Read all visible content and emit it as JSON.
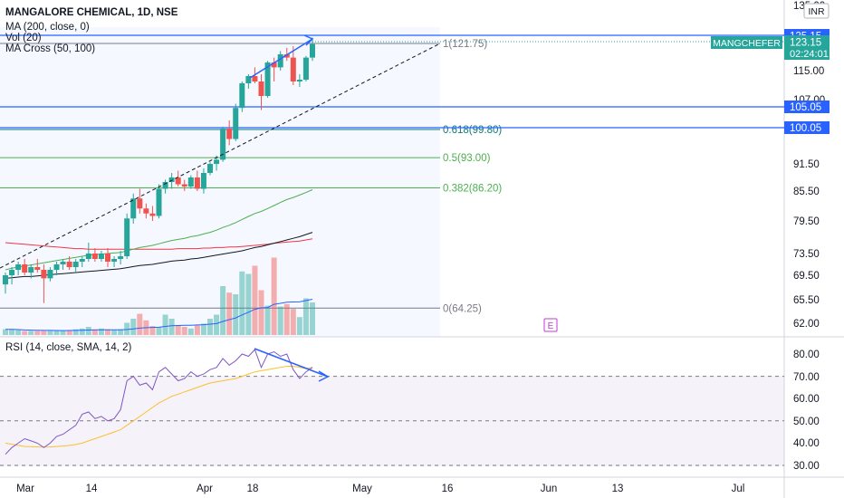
{
  "legend": {
    "symbol": "MANGALORE CHEMICAL, 1D, NSE",
    "ma": "MA (200, close, 0)",
    "vol": "Vol (20)",
    "ma_cross": "MA Cross (50, 100)",
    "rsi": "RSI (14, close, SMA, 14, 2)"
  },
  "currency": "INR",
  "price_badges": {
    "ticker": "MANGCHEFER",
    "last": "123.15",
    "countdown": "02:24:01",
    "line_high": "125.15",
    "line_mid": "105.05",
    "line_low": "100.05"
  },
  "event_marker": "E",
  "colors": {
    "up": "#26a69a",
    "down": "#ef5350",
    "trendline_blue": "#2962ff",
    "ma_green": "#4caf50",
    "ma_black": "#131722",
    "ma_red": "#f23645",
    "rsi_line": "#7e57c2",
    "rsi_ma": "#fbc02d",
    "fib_gray": "#787b86",
    "fib_teal": "#0b7a7a",
    "fib_green": "#4caf50"
  },
  "chart_data": [
    {
      "type": "candlestick",
      "title": "MANGALORE CHEMICAL, 1D, NSE",
      "y_ticks": [
        "135.00",
        "115.00",
        "107.00",
        "91.50",
        "85.50",
        "79.50",
        "73.50",
        "69.50",
        "65.50",
        "62.00"
      ],
      "y_tick_values": [
        135.0,
        115.0,
        107.0,
        91.5,
        85.5,
        79.5,
        73.5,
        69.5,
        65.5,
        62.0
      ],
      "x_ticks": [
        "Mar",
        "14",
        "Apr",
        "18",
        "May",
        "16",
        "Jun",
        "13",
        "Jul"
      ],
      "candles": [
        {
          "o": 68.0,
          "h": 70.0,
          "l": 66.5,
          "c": 69.5
        },
        {
          "o": 69.5,
          "h": 71.0,
          "l": 68.0,
          "c": 70.5
        },
        {
          "o": 70.5,
          "h": 72.0,
          "l": 69.5,
          "c": 71.5
        },
        {
          "o": 71.5,
          "h": 72.5,
          "l": 69.5,
          "c": 70.0
        },
        {
          "o": 70.0,
          "h": 71.5,
          "l": 69.0,
          "c": 71.0
        },
        {
          "o": 71.0,
          "h": 72.5,
          "l": 70.0,
          "c": 70.5
        },
        {
          "o": 70.5,
          "h": 71.5,
          "l": 65.0,
          "c": 69.0
        },
        {
          "o": 69.0,
          "h": 71.0,
          "l": 68.5,
          "c": 70.5
        },
        {
          "o": 70.5,
          "h": 72.0,
          "l": 69.5,
          "c": 71.5
        },
        {
          "o": 71.5,
          "h": 72.5,
          "l": 70.5,
          "c": 72.0
        },
        {
          "o": 72.0,
          "h": 73.0,
          "l": 70.5,
          "c": 71.0
        },
        {
          "o": 71.0,
          "h": 72.5,
          "l": 70.0,
          "c": 72.0
        },
        {
          "o": 72.0,
          "h": 73.0,
          "l": 71.0,
          "c": 72.5
        },
        {
          "o": 72.5,
          "h": 75.5,
          "l": 72.0,
          "c": 73.5
        },
        {
          "o": 73.5,
          "h": 74.5,
          "l": 72.0,
          "c": 72.5
        },
        {
          "o": 72.5,
          "h": 74.0,
          "l": 72.0,
          "c": 73.5
        },
        {
          "o": 73.5,
          "h": 74.5,
          "l": 71.0,
          "c": 72.0
        },
        {
          "o": 72.0,
          "h": 73.0,
          "l": 71.0,
          "c": 72.5
        },
        {
          "o": 72.5,
          "h": 74.0,
          "l": 71.5,
          "c": 73.0
        },
        {
          "o": 73.0,
          "h": 81.0,
          "l": 72.5,
          "c": 80.0
        },
        {
          "o": 80.0,
          "h": 85.0,
          "l": 79.0,
          "c": 84.0
        },
        {
          "o": 84.0,
          "h": 86.0,
          "l": 81.0,
          "c": 82.0
        },
        {
          "o": 82.0,
          "h": 83.0,
          "l": 80.0,
          "c": 81.0
        },
        {
          "o": 81.0,
          "h": 82.5,
          "l": 79.5,
          "c": 80.5
        },
        {
          "o": 80.5,
          "h": 87.0,
          "l": 80.0,
          "c": 86.0
        },
        {
          "o": 86.0,
          "h": 88.0,
          "l": 85.0,
          "c": 87.5
        },
        {
          "o": 87.5,
          "h": 89.5,
          "l": 86.0,
          "c": 88.5
        },
        {
          "o": 88.5,
          "h": 90.0,
          "l": 86.5,
          "c": 87.0
        },
        {
          "o": 87.0,
          "h": 88.0,
          "l": 85.5,
          "c": 86.5
        },
        {
          "o": 86.5,
          "h": 89.0,
          "l": 86.0,
          "c": 88.5
        },
        {
          "o": 88.5,
          "h": 90.0,
          "l": 85.5,
          "c": 86.0
        },
        {
          "o": 86.0,
          "h": 90.5,
          "l": 85.0,
          "c": 89.5
        },
        {
          "o": 89.5,
          "h": 92.0,
          "l": 89.0,
          "c": 91.5
        },
        {
          "o": 91.5,
          "h": 93.5,
          "l": 90.0,
          "c": 92.5
        },
        {
          "o": 92.5,
          "h": 100.5,
          "l": 92.0,
          "c": 100.0
        },
        {
          "o": 100.0,
          "h": 102.0,
          "l": 96.0,
          "c": 97.5
        },
        {
          "o": 97.5,
          "h": 106.0,
          "l": 97.0,
          "c": 105.0
        },
        {
          "o": 105.0,
          "h": 112.0,
          "l": 104.0,
          "c": 111.5
        },
        {
          "o": 111.5,
          "h": 114.0,
          "l": 110.0,
          "c": 113.5
        },
        {
          "o": 113.5,
          "h": 116.0,
          "l": 111.5,
          "c": 112.0
        },
        {
          "o": 112.0,
          "h": 114.0,
          "l": 104.5,
          "c": 108.0
        },
        {
          "o": 108.0,
          "h": 118.0,
          "l": 107.5,
          "c": 117.5
        },
        {
          "o": 117.5,
          "h": 119.0,
          "l": 112.0,
          "c": 116.0
        },
        {
          "o": 116.0,
          "h": 121.0,
          "l": 115.0,
          "c": 120.0
        },
        {
          "o": 120.0,
          "h": 122.0,
          "l": 118.0,
          "c": 119.0
        },
        {
          "o": 119.0,
          "h": 122.5,
          "l": 111.0,
          "c": 112.0
        },
        {
          "o": 112.0,
          "h": 114.0,
          "l": 110.5,
          "c": 112.5
        },
        {
          "o": 112.5,
          "h": 119.5,
          "l": 112.0,
          "c": 119.0
        },
        {
          "o": 119.0,
          "h": 125.15,
          "l": 118.0,
          "c": 123.15
        }
      ],
      "moving_averages": [
        {
          "name": "MA (200, close, 0)",
          "color": "#f23645",
          "values": [
            75.5,
            75.4,
            75.3,
            75.2,
            75.1,
            75.0,
            74.9,
            74.8,
            74.7,
            74.6,
            74.5,
            74.4,
            74.4,
            74.3,
            74.3,
            74.3,
            74.3,
            74.3,
            74.3,
            74.3,
            74.3,
            74.3,
            74.3,
            74.3,
            74.3,
            74.3,
            74.3,
            74.4,
            74.4,
            74.4,
            74.4,
            74.5,
            74.5,
            74.6,
            74.6,
            74.7,
            74.7,
            74.8,
            74.9,
            75.0,
            75.1,
            75.2,
            75.4,
            75.5,
            75.6,
            75.7,
            75.8,
            76.0,
            76.2
          ]
        },
        {
          "name": "MA Cross 50",
          "color": "#4caf50",
          "values": [
            70.5,
            70.8,
            71.0,
            71.2,
            71.4,
            71.6,
            71.8,
            72.0,
            72.2,
            72.4,
            72.6,
            72.8,
            73.0,
            73.2,
            73.3,
            73.4,
            73.5,
            73.6,
            73.7,
            74.0,
            74.3,
            74.6,
            74.8,
            75.0,
            75.3,
            75.6,
            75.9,
            76.1,
            76.3,
            76.6,
            76.8,
            77.1,
            77.4,
            77.8,
            78.3,
            78.7,
            79.2,
            79.8,
            80.4,
            81.0,
            81.4,
            82.0,
            82.6,
            83.2,
            83.8,
            84.2,
            84.7,
            85.2,
            85.8
          ]
        },
        {
          "name": "MA Cross 100",
          "color": "#131722",
          "values": [
            69.0,
            69.1,
            69.2,
            69.3,
            69.3,
            69.4,
            69.5,
            69.6,
            69.7,
            69.8,
            69.9,
            70.0,
            70.1,
            70.2,
            70.3,
            70.4,
            70.5,
            70.6,
            70.7,
            70.9,
            71.1,
            71.3,
            71.4,
            71.5,
            71.7,
            71.9,
            72.1,
            72.2,
            72.3,
            72.5,
            72.6,
            72.8,
            73.0,
            73.2,
            73.4,
            73.6,
            73.8,
            74.0,
            74.3,
            74.6,
            74.8,
            75.1,
            75.4,
            75.7,
            76.0,
            76.3,
            76.6,
            77.0,
            77.4
          ]
        }
      ],
      "fibonacci": [
        {
          "label": "1(121.75)",
          "level": 121.75
        },
        {
          "label": "0.618(99.80)",
          "level": 99.8
        },
        {
          "label": "0.5(93.00)",
          "level": 93.0
        },
        {
          "label": "0.382(86.20)",
          "level": 86.2
        },
        {
          "label": "0(64.25)",
          "level": 64.25
        }
      ],
      "horizontal_lines": [
        125.15,
        105.05,
        100.05
      ]
    },
    {
      "type": "bar",
      "name": "Vol (20)",
      "volume_relative": [
        0.07,
        0.07,
        0.06,
        0.05,
        0.05,
        0.05,
        0.05,
        0.05,
        0.05,
        0.05,
        0.06,
        0.07,
        0.08,
        0.1,
        0.07,
        0.08,
        0.07,
        0.06,
        0.07,
        0.15,
        0.2,
        0.26,
        0.18,
        0.11,
        0.1,
        0.25,
        0.2,
        0.12,
        0.1,
        0.08,
        0.12,
        0.14,
        0.2,
        0.25,
        0.6,
        0.52,
        0.5,
        0.78,
        0.75,
        0.85,
        0.55,
        0.36,
        0.95,
        0.35,
        0.38,
        0.32,
        0.22,
        0.45,
        0.4
      ]
    },
    {
      "type": "line",
      "name": "RSI (14, close, SMA, 14, 2)",
      "y_ticks": [
        "80.00",
        "70.00",
        "60.00",
        "50.00",
        "40.00",
        "30.00"
      ],
      "y_tick_values": [
        80,
        70,
        60,
        50,
        40,
        30
      ],
      "bands": [
        30,
        50,
        70
      ],
      "rsi": [
        35,
        38,
        40,
        42,
        41,
        40,
        38,
        40,
        43,
        44,
        46,
        48,
        53,
        54,
        51,
        52,
        50,
        51,
        55,
        68,
        70,
        66,
        67,
        64,
        72,
        74,
        71,
        68,
        69,
        72,
        70,
        71,
        73,
        74,
        78,
        75,
        77,
        80,
        79,
        82,
        74,
        80,
        81,
        79,
        80,
        73,
        69,
        72,
        74
      ],
      "rsi_ma": [
        40,
        39.5,
        39,
        38.5,
        38.4,
        38.3,
        38.2,
        38.3,
        38.5,
        38.7,
        39,
        39.4,
        40,
        41,
        42,
        43,
        44,
        45,
        46,
        48,
        50,
        52,
        54,
        56,
        58,
        59.5,
        61,
        62,
        63,
        64,
        65,
        66,
        67,
        67.5,
        68,
        68.5,
        69,
        70,
        71,
        72,
        72.5,
        73,
        73.5,
        74,
        74.5,
        74.5,
        74,
        73.5,
        74
      ]
    }
  ]
}
